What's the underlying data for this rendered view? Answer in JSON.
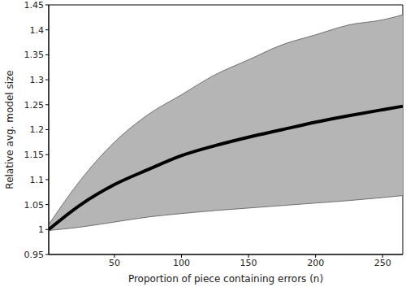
{
  "chart_data": {
    "type": "line",
    "xlabel": "Proportion of piece containing errors (n)",
    "ylabel": "Relative avg. model size",
    "x": [
      1,
      25,
      50,
      75,
      100,
      125,
      150,
      175,
      200,
      225,
      250,
      265
    ],
    "series": [
      {
        "color": "#000000",
        "values": [
          1.0,
          1.05,
          1.09,
          1.12,
          1.148,
          1.168,
          1.185,
          1.2,
          1.215,
          1.228,
          1.24,
          1.247
        ],
        "lower": [
          0.998,
          1.005,
          1.015,
          1.025,
          1.032,
          1.038,
          1.043,
          1.048,
          1.053,
          1.058,
          1.064,
          1.068
        ],
        "upper": [
          1.01,
          1.1,
          1.175,
          1.23,
          1.27,
          1.31,
          1.34,
          1.37,
          1.39,
          1.41,
          1.42,
          1.43
        ]
      }
    ],
    "xlim": [
      1,
      265
    ],
    "xticks": [
      50,
      100,
      150,
      200,
      250
    ],
    "ylim": [
      0.95,
      1.45
    ],
    "yticks": [
      0.95,
      1,
      1.05,
      1.1,
      1.15,
      1.2,
      1.25,
      1.3,
      1.35,
      1.4,
      1.45
    ],
    "grid": false
  }
}
